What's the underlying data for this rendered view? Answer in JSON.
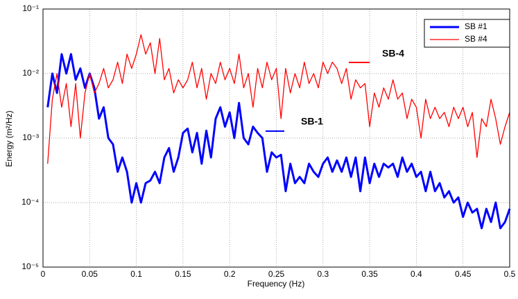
{
  "chart_data": {
    "type": "line",
    "x_label": "Frequency (Hz)",
    "y_label": "Energy (m²/Hz)",
    "ylog": true,
    "grid": true,
    "legend": "upper right",
    "xlim": [
      0,
      0.5
    ],
    "xticks": [
      0,
      0.05,
      0.1,
      0.15,
      0.2,
      0.25,
      0.3,
      0.35,
      0.4,
      0.45,
      0.5
    ],
    "ylim": [
      1e-05,
      0.1
    ],
    "yticks": [
      {
        "value": 1e-05,
        "label": "10⁻⁵"
      },
      {
        "value": 0.0001,
        "label": "10⁻⁴"
      },
      {
        "value": 0.001,
        "label": "10⁻³"
      },
      {
        "value": 0.01,
        "label": "10⁻²"
      },
      {
        "value": 0.1,
        "label": "10⁻¹"
      }
    ],
    "x": [
      0.005,
      0.01,
      0.015,
      0.02,
      0.025,
      0.03,
      0.035,
      0.04,
      0.045,
      0.05,
      0.055,
      0.06,
      0.065,
      0.07,
      0.075,
      0.08,
      0.085,
      0.09,
      0.095,
      0.1,
      0.105,
      0.11,
      0.115,
      0.12,
      0.125,
      0.13,
      0.135,
      0.14,
      0.145,
      0.15,
      0.155,
      0.16,
      0.165,
      0.17,
      0.175,
      0.18,
      0.185,
      0.19,
      0.195,
      0.2,
      0.205,
      0.21,
      0.215,
      0.22,
      0.225,
      0.23,
      0.235,
      0.24,
      0.245,
      0.25,
      0.255,
      0.26,
      0.265,
      0.27,
      0.275,
      0.28,
      0.285,
      0.29,
      0.295,
      0.3,
      0.305,
      0.31,
      0.315,
      0.32,
      0.325,
      0.33,
      0.335,
      0.34,
      0.345,
      0.35,
      0.355,
      0.36,
      0.365,
      0.37,
      0.375,
      0.38,
      0.385,
      0.39,
      0.395,
      0.4,
      0.405,
      0.41,
      0.415,
      0.42,
      0.425,
      0.43,
      0.435,
      0.44,
      0.445,
      0.45,
      0.455,
      0.46,
      0.465,
      0.47,
      0.475,
      0.48,
      0.485,
      0.49,
      0.495,
      0.5
    ],
    "series": [
      {
        "name": "SB #1",
        "color": "#0000ff",
        "values": [
          0.003,
          0.01,
          0.005,
          0.02,
          0.01,
          0.02,
          0.008,
          0.012,
          0.006,
          0.01,
          0.006,
          0.002,
          0.003,
          0.001,
          0.0008,
          0.0003,
          0.0005,
          0.0003,
          0.0001,
          0.0002,
          0.0001,
          0.0002,
          0.00022,
          0.0003,
          0.0002,
          0.0005,
          0.0007,
          0.0003,
          0.0005,
          0.0012,
          0.0014,
          0.0006,
          0.0012,
          0.0004,
          0.0013,
          0.0005,
          0.002,
          0.003,
          0.0015,
          0.0025,
          0.001,
          0.0035,
          0.001,
          0.0008,
          0.0015,
          0.0012,
          0.001,
          0.0003,
          0.0006,
          0.0005,
          0.00055,
          0.00015,
          0.0004,
          0.0002,
          0.00025,
          0.0002,
          0.0004,
          0.0003,
          0.00025,
          0.0004,
          0.0005,
          0.0003,
          0.00045,
          0.0003,
          0.0005,
          0.00025,
          0.0005,
          0.00015,
          0.0005,
          0.0002,
          0.0004,
          0.00025,
          0.0004,
          0.00035,
          0.0004,
          0.00025,
          0.0005,
          0.0003,
          0.0004,
          0.00025,
          0.0003,
          0.00015,
          0.0003,
          0.00015,
          0.0002,
          0.00012,
          0.00015,
          0.0001,
          0.00012,
          6e-05,
          0.0001,
          7e-05,
          8e-05,
          4e-05,
          8e-05,
          5e-05,
          0.0001,
          4e-05,
          5e-05,
          8e-05
        ]
      },
      {
        "name": "SB #4",
        "color": "#ff0000",
        "values": [
          0.0004,
          0.004,
          0.01,
          0.003,
          0.007,
          0.0015,
          0.007,
          0.001,
          0.005,
          0.01,
          0.005,
          0.007,
          0.012,
          0.006,
          0.008,
          0.015,
          0.007,
          0.02,
          0.012,
          0.02,
          0.04,
          0.02,
          0.03,
          0.01,
          0.035,
          0.008,
          0.012,
          0.005,
          0.008,
          0.006,
          0.008,
          0.015,
          0.006,
          0.012,
          0.004,
          0.01,
          0.007,
          0.015,
          0.008,
          0.012,
          0.007,
          0.02,
          0.006,
          0.01,
          0.003,
          0.012,
          0.006,
          0.015,
          0.008,
          0.012,
          0.002,
          0.012,
          0.005,
          0.01,
          0.006,
          0.015,
          0.007,
          0.01,
          0.006,
          0.015,
          0.01,
          0.015,
          0.012,
          0.007,
          0.012,
          0.004,
          0.008,
          0.006,
          0.007,
          0.0015,
          0.005,
          0.003,
          0.006,
          0.004,
          0.008,
          0.004,
          0.005,
          0.002,
          0.004,
          0.003,
          0.001,
          0.004,
          0.002,
          0.003,
          0.002,
          0.0025,
          0.0015,
          0.003,
          0.002,
          0.003,
          0.0015,
          0.0025,
          0.0005,
          0.002,
          0.0015,
          0.004,
          0.002,
          0.0008,
          0.0015,
          0.0025
        ]
      }
    ],
    "annotations": [
      {
        "text": "SB-4",
        "color": "#ff0000"
      },
      {
        "text": "SB-1",
        "color": "#0000ff"
      }
    ]
  }
}
